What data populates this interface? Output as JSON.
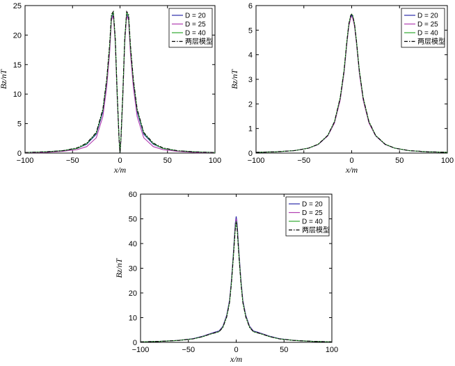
{
  "chart_data": [
    {
      "type": "line",
      "xlabel": "x/m",
      "ylabel": "Bz/nT",
      "xlim": [
        -100,
        100
      ],
      "ylim": [
        0,
        25
      ],
      "xticks": [
        "−100",
        "−50",
        "0",
        "50",
        "100"
      ],
      "yticks": [
        "0",
        "5",
        "10",
        "15",
        "20",
        "25"
      ],
      "legend_position": "top-right",
      "series": [
        {
          "name": "D = 20",
          "color": "#2a2aa8",
          "dash": "solid",
          "x": [
            -100,
            -80,
            -60,
            -45,
            -35,
            -25,
            -18,
            -14,
            -11,
            -9,
            -7,
            -5,
            -3,
            -1,
            0,
            1,
            3,
            5,
            7,
            9,
            11,
            14,
            18,
            25,
            35,
            45,
            60,
            80,
            100
          ],
          "y": [
            0.1,
            0.2,
            0.4,
            0.8,
            1.5,
            3.2,
            7.0,
            12.0,
            17.5,
            22.8,
            23.6,
            19.0,
            10.0,
            2.5,
            0.0,
            2.5,
            10.0,
            19.0,
            23.6,
            22.8,
            17.5,
            12.0,
            7.0,
            3.2,
            1.5,
            0.8,
            0.4,
            0.2,
            0.1
          ]
        },
        {
          "name": "D = 25",
          "color": "#b03cb0",
          "dash": "solid",
          "x": [
            -100,
            -80,
            -60,
            -45,
            -35,
            -25,
            -18,
            -14,
            -11,
            -9,
            -7,
            -5,
            -3,
            -1,
            0,
            1,
            3,
            5,
            7,
            9,
            11,
            14,
            18,
            25,
            35,
            45,
            60,
            80,
            100
          ],
          "y": [
            0.05,
            0.1,
            0.3,
            0.6,
            1.1,
            2.6,
            6.2,
            11.2,
            16.8,
            22.5,
            23.4,
            18.6,
            9.6,
            2.3,
            0.0,
            2.3,
            9.6,
            18.6,
            23.4,
            22.5,
            16.8,
            11.2,
            6.2,
            2.6,
            1.1,
            0.6,
            0.3,
            0.1,
            0.05
          ]
        },
        {
          "name": "D = 40",
          "color": "#2ea82e",
          "dash": "solid",
          "x": [
            -100,
            -80,
            -60,
            -45,
            -35,
            -25,
            -18,
            -14,
            -11,
            -9,
            -7,
            -5,
            -3,
            -1,
            0,
            1,
            3,
            5,
            7,
            9,
            11,
            14,
            18,
            25,
            35,
            45,
            60,
            80,
            100
          ],
          "y": [
            0.1,
            0.2,
            0.4,
            0.8,
            1.6,
            3.4,
            7.3,
            12.4,
            18.0,
            23.2,
            23.9,
            19.3,
            10.2,
            2.6,
            0.0,
            2.6,
            10.2,
            19.3,
            23.9,
            23.2,
            18.0,
            12.4,
            7.3,
            3.4,
            1.6,
            0.8,
            0.4,
            0.2,
            0.1
          ]
        },
        {
          "name": "两层模型",
          "color": "#000000",
          "dash": "dashdot",
          "x": [
            -100,
            -80,
            -60,
            -45,
            -35,
            -25,
            -18,
            -14,
            -11,
            -9,
            -7,
            -5,
            -3,
            -1,
            0,
            1,
            3,
            5,
            7,
            9,
            11,
            14,
            18,
            25,
            35,
            45,
            60,
            80,
            100
          ],
          "y": [
            0.1,
            0.2,
            0.4,
            0.9,
            1.7,
            3.5,
            7.5,
            12.6,
            18.3,
            23.5,
            24.0,
            19.5,
            10.3,
            2.6,
            0.0,
            2.6,
            10.3,
            19.5,
            24.0,
            23.5,
            18.3,
            12.6,
            7.5,
            3.5,
            1.7,
            0.9,
            0.4,
            0.2,
            0.1
          ]
        }
      ]
    },
    {
      "type": "line",
      "xlabel": "x/m",
      "ylabel": "Bz/nT",
      "xlim": [
        -100,
        100
      ],
      "ylim": [
        0,
        6
      ],
      "xticks": [
        "−100",
        "−50",
        "0",
        "50",
        "100"
      ],
      "yticks": [
        "0",
        "1",
        "2",
        "3",
        "4",
        "5",
        "6"
      ],
      "legend_position": "top-right",
      "series": [
        {
          "name": "D = 20",
          "color": "#2a2aa8",
          "dash": "solid",
          "x": [
            -100,
            -80,
            -60,
            -45,
            -35,
            -25,
            -18,
            -12,
            -8,
            -5,
            -3,
            -1,
            0,
            1,
            3,
            5,
            8,
            12,
            18,
            25,
            35,
            45,
            60,
            80,
            100
          ],
          "y": [
            0.03,
            0.05,
            0.1,
            0.2,
            0.35,
            0.7,
            1.25,
            2.2,
            3.3,
            4.5,
            5.2,
            5.55,
            5.6,
            5.55,
            5.2,
            4.5,
            3.3,
            2.2,
            1.25,
            0.7,
            0.35,
            0.2,
            0.1,
            0.05,
            0.03
          ]
        },
        {
          "name": "D = 25",
          "color": "#b03cb0",
          "dash": "solid",
          "x": [
            -100,
            -80,
            -60,
            -45,
            -35,
            -25,
            -18,
            -12,
            -8,
            -5,
            -3,
            -1,
            0,
            1,
            3,
            5,
            8,
            12,
            18,
            25,
            35,
            45,
            60,
            80,
            100
          ],
          "y": [
            0.03,
            0.05,
            0.1,
            0.2,
            0.35,
            0.7,
            1.22,
            2.15,
            3.25,
            4.45,
            5.15,
            5.5,
            5.55,
            5.5,
            5.15,
            4.45,
            3.25,
            2.15,
            1.22,
            0.7,
            0.35,
            0.2,
            0.1,
            0.05,
            0.03
          ]
        },
        {
          "name": "D = 40",
          "color": "#2ea82e",
          "dash": "solid",
          "x": [
            -100,
            -80,
            -60,
            -45,
            -35,
            -25,
            -18,
            -12,
            -8,
            -5,
            -3,
            -1,
            0,
            1,
            3,
            5,
            8,
            12,
            18,
            25,
            35,
            45,
            60,
            80,
            100
          ],
          "y": [
            0.03,
            0.05,
            0.1,
            0.2,
            0.36,
            0.72,
            1.28,
            2.25,
            3.35,
            4.55,
            5.25,
            5.6,
            5.65,
            5.6,
            5.25,
            4.55,
            3.35,
            2.25,
            1.28,
            0.72,
            0.36,
            0.2,
            0.1,
            0.05,
            0.03
          ]
        },
        {
          "name": "两层模型",
          "color": "#000000",
          "dash": "dashdot",
          "x": [
            -100,
            -80,
            -60,
            -45,
            -35,
            -25,
            -18,
            -12,
            -8,
            -5,
            -3,
            -1,
            0,
            1,
            3,
            5,
            8,
            12,
            18,
            25,
            35,
            45,
            60,
            80,
            100
          ],
          "y": [
            0.03,
            0.05,
            0.1,
            0.2,
            0.36,
            0.72,
            1.28,
            2.25,
            3.35,
            4.55,
            5.25,
            5.6,
            5.65,
            5.6,
            5.25,
            4.55,
            3.35,
            2.25,
            1.28,
            0.72,
            0.36,
            0.2,
            0.1,
            0.05,
            0.03
          ]
        }
      ]
    },
    {
      "type": "line",
      "xlabel": "x/m",
      "ylabel": "Bz/nT",
      "xlim": [
        -100,
        100
      ],
      "ylim": [
        0,
        60
      ],
      "xticks": [
        "−100",
        "−50",
        "0",
        "50",
        "100"
      ],
      "yticks": [
        "0",
        "10",
        "20",
        "30",
        "40",
        "50",
        "60"
      ],
      "legend_position": "top-right",
      "series": [
        {
          "name": "D = 20",
          "color": "#2a2aa8",
          "dash": "solid",
          "x": [
            -100,
            -80,
            -60,
            -45,
            -35,
            -28,
            -22,
            -18,
            -14,
            -10,
            -7,
            -5,
            -3,
            -1,
            0,
            1,
            3,
            5,
            7,
            10,
            14,
            18,
            22,
            28,
            35,
            45,
            60,
            80,
            100
          ],
          "y": [
            0.2,
            0.4,
            0.8,
            1.5,
            2.5,
            3.4,
            4.2,
            4.6,
            6.5,
            11.0,
            17.0,
            25.0,
            36.0,
            48.0,
            51.0,
            48.0,
            36.0,
            25.0,
            17.0,
            11.0,
            6.5,
            4.6,
            4.2,
            3.4,
            2.5,
            1.5,
            0.8,
            0.4,
            0.2
          ]
        },
        {
          "name": "D = 25",
          "color": "#b03cb0",
          "dash": "solid",
          "x": [
            -100,
            -80,
            -60,
            -45,
            -35,
            -28,
            -22,
            -18,
            -14,
            -10,
            -7,
            -5,
            -3,
            -1,
            0,
            1,
            3,
            5,
            7,
            10,
            14,
            18,
            22,
            28,
            35,
            45,
            60,
            80,
            100
          ],
          "y": [
            0.2,
            0.4,
            0.8,
            1.4,
            2.4,
            3.3,
            4.0,
            4.4,
            6.3,
            10.7,
            16.6,
            24.5,
            35.3,
            47.0,
            50.0,
            47.0,
            35.3,
            24.5,
            16.6,
            10.7,
            6.3,
            4.4,
            4.0,
            3.3,
            2.4,
            1.4,
            0.8,
            0.4,
            0.2
          ]
        },
        {
          "name": "D = 40",
          "color": "#2ea82e",
          "dash": "solid",
          "x": [
            -100,
            -80,
            -60,
            -45,
            -35,
            -28,
            -22,
            -18,
            -14,
            -10,
            -7,
            -5,
            -3,
            -1,
            0,
            1,
            3,
            5,
            7,
            10,
            14,
            18,
            22,
            28,
            35,
            45,
            60,
            80,
            100
          ],
          "y": [
            0.2,
            0.4,
            0.8,
            1.4,
            2.3,
            3.2,
            3.9,
            4.3,
            6.1,
            10.4,
            16.2,
            24.0,
            34.6,
            46.0,
            49.0,
            46.0,
            34.6,
            24.0,
            16.2,
            10.4,
            6.1,
            4.3,
            3.9,
            3.2,
            2.3,
            1.4,
            0.8,
            0.4,
            0.2
          ]
        },
        {
          "name": "两层模型",
          "color": "#000000",
          "dash": "dashdot",
          "x": [
            -100,
            -80,
            -60,
            -45,
            -35,
            -28,
            -22,
            -18,
            -14,
            -10,
            -7,
            -5,
            -3,
            -1,
            0,
            1,
            3,
            5,
            7,
            10,
            14,
            18,
            22,
            28,
            35,
            45,
            60,
            80,
            100
          ],
          "y": [
            0.2,
            0.4,
            0.8,
            1.4,
            2.3,
            3.2,
            3.9,
            4.3,
            6.0,
            10.2,
            16.0,
            23.7,
            34.2,
            45.5,
            48.5,
            45.5,
            34.2,
            23.7,
            16.0,
            10.2,
            6.0,
            4.3,
            3.9,
            3.2,
            2.3,
            1.4,
            0.8,
            0.4,
            0.2
          ]
        }
      ]
    }
  ]
}
